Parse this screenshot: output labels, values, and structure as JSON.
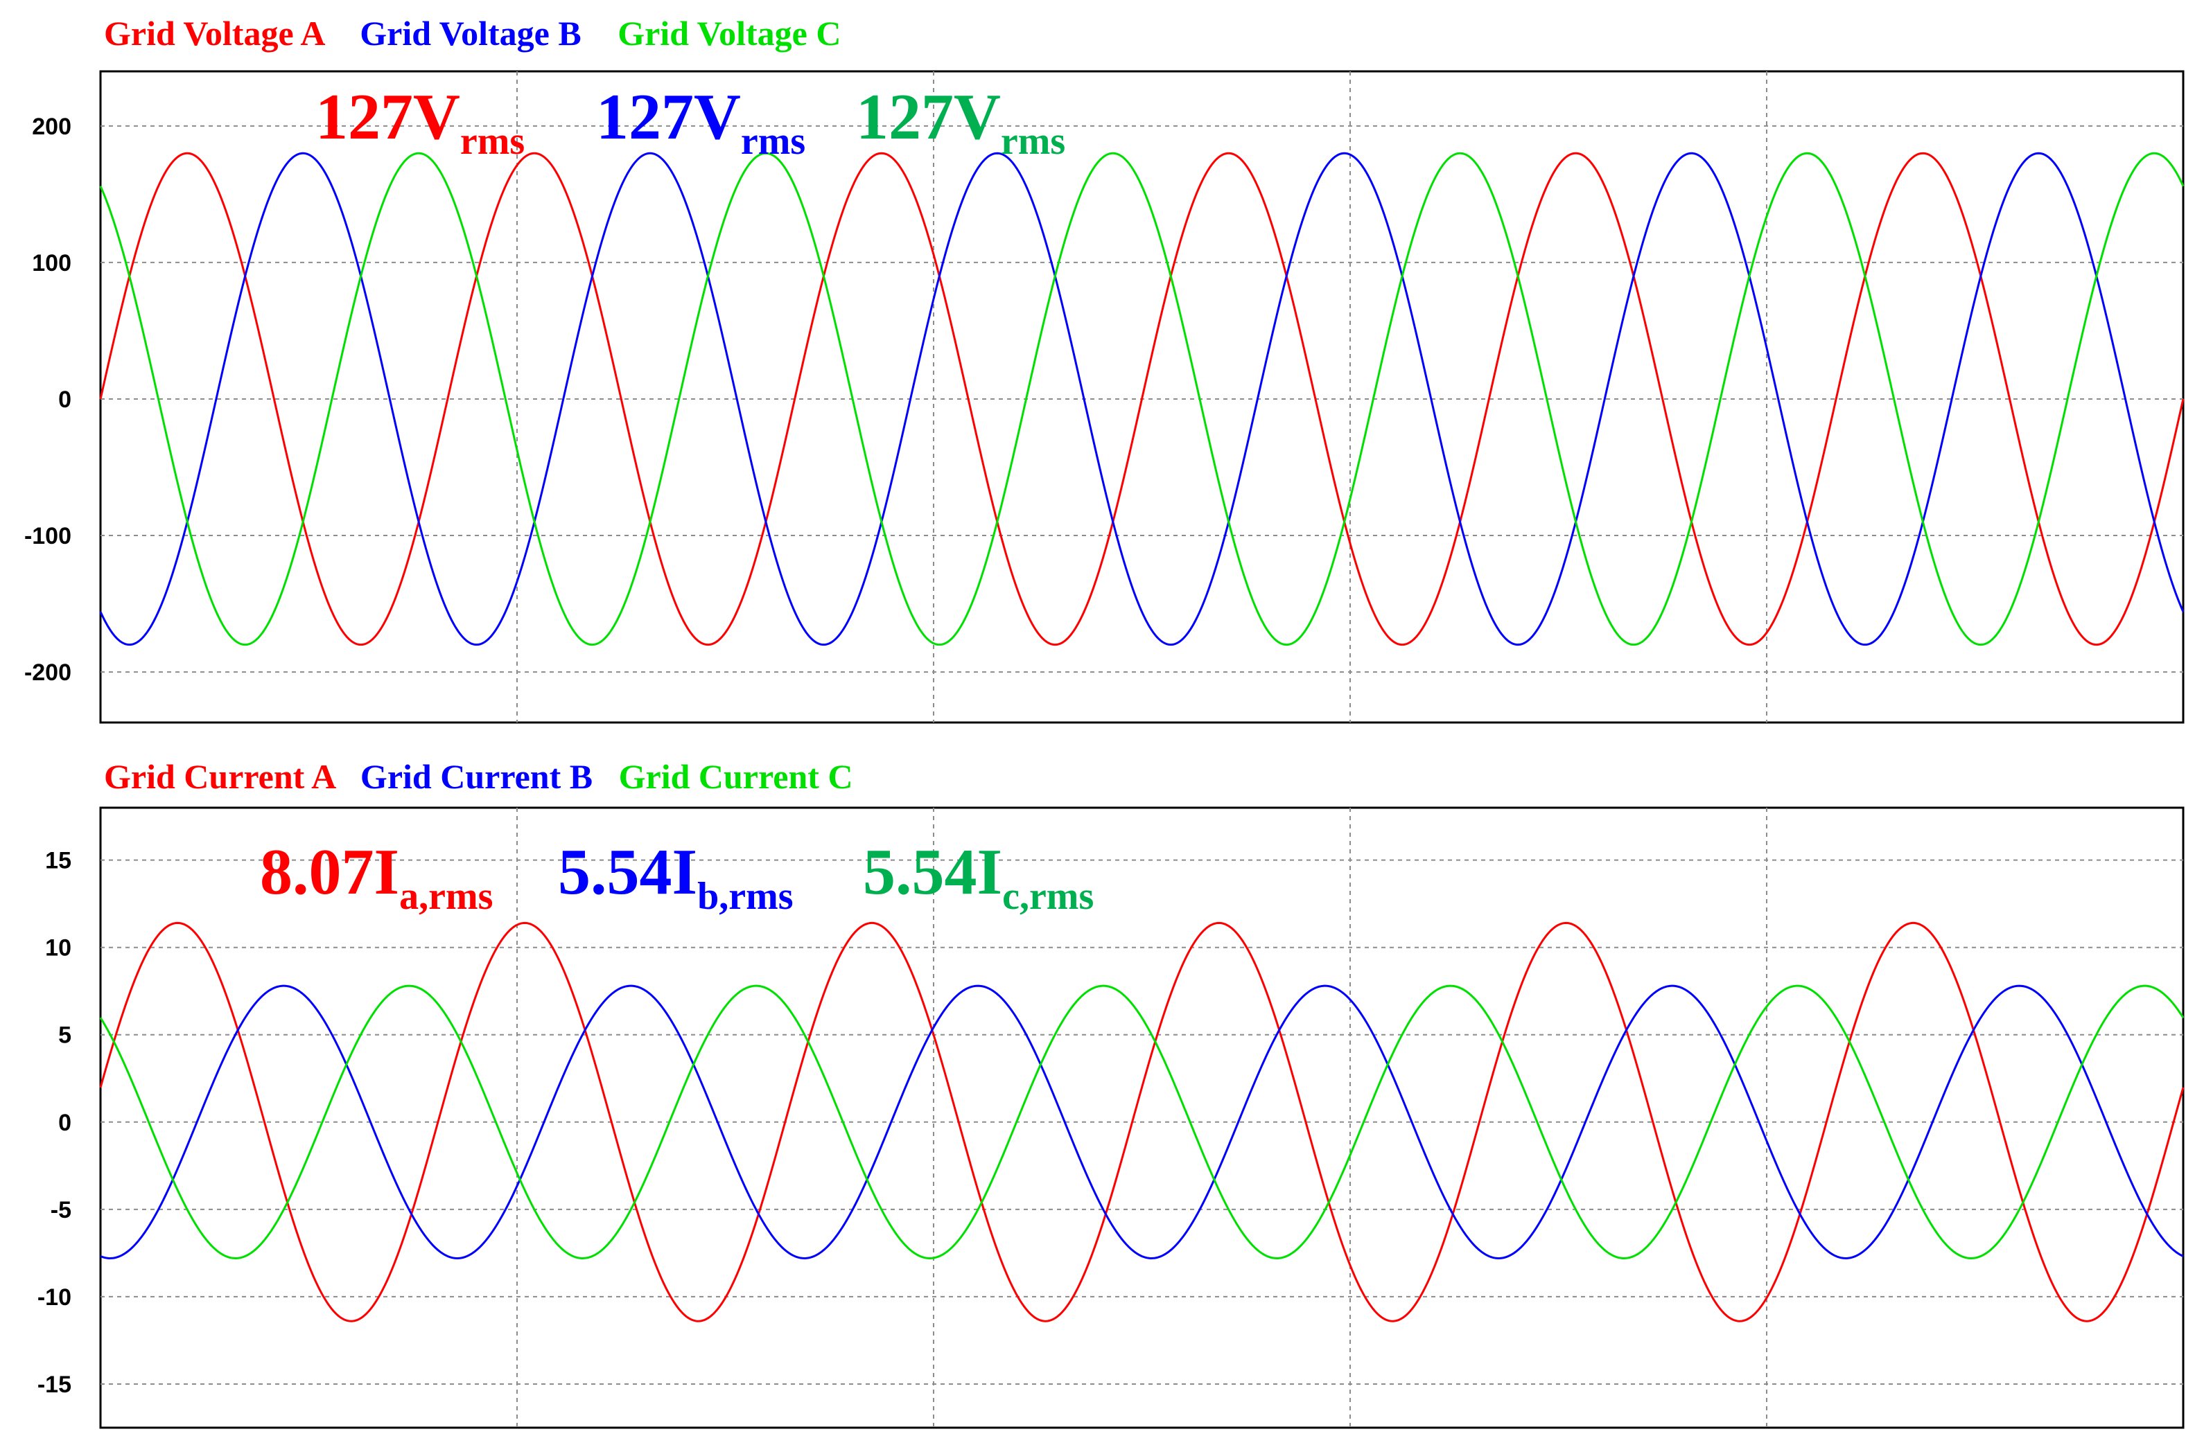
{
  "colors": {
    "phase_a": "#ff0000",
    "phase_b": "#0000ff",
    "phase_c": "#00e000",
    "annotation_c": "#00b050",
    "grid": "#8c8c8c",
    "frame": "#000000"
  },
  "chart_data": [
    {
      "type": "line",
      "legend": [
        "Grid Voltage A",
        "Grid Voltage B",
        "Grid Voltage C"
      ],
      "legend_placement": "top-left",
      "annotations": [
        {
          "value": "127",
          "unit": "V",
          "sub": "rms",
          "series": "Grid Voltage A"
        },
        {
          "value": "127",
          "unit": "V",
          "sub": "rms",
          "series": "Grid Voltage B"
        },
        {
          "value": "127",
          "unit": "V",
          "sub": "rms",
          "series": "Grid Voltage C"
        }
      ],
      "yticks": [
        200,
        100,
        0,
        -100,
        -200
      ],
      "ylim": [
        -237,
        240
      ],
      "xlim": [
        0,
        1
      ],
      "grid": true,
      "series": [
        {
          "name": "Grid Voltage A",
          "amplitude": 180,
          "cycles_in_view": 6,
          "phase_at_start_deg": 0
        },
        {
          "name": "Grid Voltage B",
          "amplitude": 180,
          "cycles_in_view": 6,
          "phase_at_start_deg": -120
        },
        {
          "name": "Grid Voltage C",
          "amplitude": 180,
          "cycles_in_view": 6,
          "phase_at_start_deg": 120
        }
      ]
    },
    {
      "type": "line",
      "legend": [
        "Grid Current A",
        "Grid Current B",
        "Grid Current C"
      ],
      "legend_placement": "top-left",
      "annotations": [
        {
          "value": "8.07",
          "unit": "I",
          "sub": "a,rms",
          "series": "Grid Current A"
        },
        {
          "value": "5.54",
          "unit": "I",
          "sub": "b,rms",
          "series": "Grid Current B"
        },
        {
          "value": "5.54",
          "unit": "I",
          "sub": "c,rms",
          "series": "Grid Current C"
        }
      ],
      "yticks": [
        15,
        10,
        5,
        0,
        -5,
        -10,
        -15
      ],
      "ylim": [
        -17.5,
        18
      ],
      "xlim": [
        0,
        1
      ],
      "grid": true,
      "series": [
        {
          "name": "Grid Current A",
          "amplitude": 11.4,
          "cycles_in_view": 6,
          "phase_at_start_deg": 10
        },
        {
          "name": "Grid Current B",
          "amplitude": 7.8,
          "cycles_in_view": 6,
          "phase_at_start_deg": -100
        },
        {
          "name": "Grid Current C",
          "amplitude": 7.8,
          "cycles_in_view": 6,
          "phase_at_start_deg": 130
        }
      ]
    }
  ]
}
